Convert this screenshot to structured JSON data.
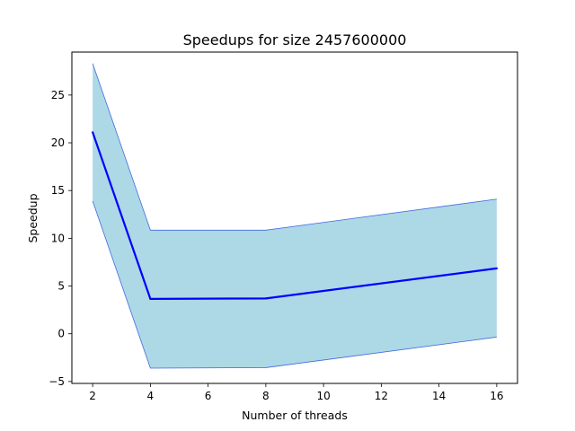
{
  "chart_data": {
    "type": "line",
    "title": "Speedups for size 2457600000",
    "xlabel": "Number of threads",
    "ylabel": "Speedup",
    "x": [
      2,
      4,
      8,
      16
    ],
    "series": [
      {
        "values": [
          21.1,
          3.65,
          3.7,
          6.85
        ],
        "color": "#0000ff"
      }
    ],
    "band": {
      "upper": [
        28.3,
        10.85,
        10.85,
        14.1
      ],
      "lower": [
        13.9,
        -3.6,
        -3.55,
        -0.35
      ],
      "fill": "#add8e6",
      "edge": "#4169e1"
    },
    "xlim": [
      1.28,
      16.72
    ],
    "ylim": [
      -5.2,
      29.5
    ],
    "xticks": [
      2,
      4,
      6,
      8,
      10,
      12,
      14,
      16
    ],
    "yticks": [
      -5,
      0,
      5,
      10,
      15,
      20,
      25
    ],
    "grid": false
  }
}
